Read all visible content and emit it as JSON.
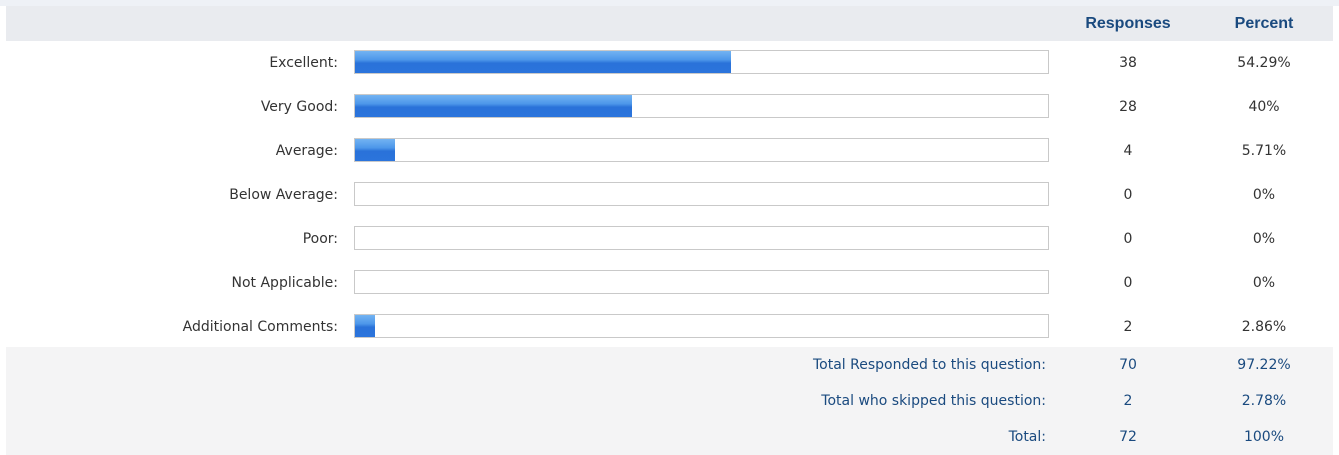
{
  "header": {
    "responses_label": "Responses",
    "percent_label": "Percent"
  },
  "chart_data": {
    "type": "bar",
    "orientation": "horizontal",
    "categories": [
      "Excellent:",
      "Very Good:",
      "Average:",
      "Below Average:",
      "Poor:",
      "Not Applicable:",
      "Additional Comments:"
    ],
    "values": [
      54.29,
      40,
      5.71,
      0,
      0,
      0,
      2.86
    ],
    "responses": [
      "38",
      "28",
      "4",
      "0",
      "0",
      "0",
      "2"
    ],
    "percent_labels": [
      "54.29%",
      "40%",
      "5.71%",
      "0%",
      "0%",
      "0%",
      "2.86%"
    ],
    "xlim": [
      0,
      100
    ],
    "bar_color": "#2b74dc",
    "grid": false
  },
  "totals": [
    {
      "label": "Total Responded to this question:",
      "responses": "70",
      "percent": "97.22%"
    },
    {
      "label": "Total who skipped this question:",
      "responses": "2",
      "percent": "2.78%"
    },
    {
      "label": "Total:",
      "responses": "72",
      "percent": "100%"
    }
  ]
}
